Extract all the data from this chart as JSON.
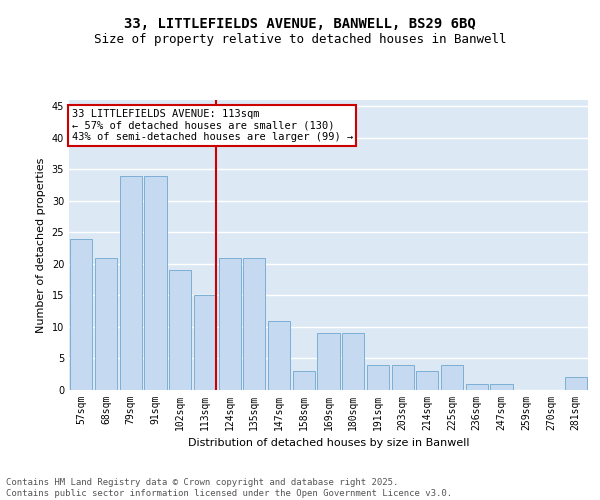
{
  "title_line1": "33, LITTLEFIELDS AVENUE, BANWELL, BS29 6BQ",
  "title_line2": "Size of property relative to detached houses in Banwell",
  "xlabel": "Distribution of detached houses by size in Banwell",
  "ylabel": "Number of detached properties",
  "categories": [
    "57sqm",
    "68sqm",
    "79sqm",
    "91sqm",
    "102sqm",
    "113sqm",
    "124sqm",
    "135sqm",
    "147sqm",
    "158sqm",
    "169sqm",
    "180sqm",
    "191sqm",
    "203sqm",
    "214sqm",
    "225sqm",
    "236sqm",
    "247sqm",
    "259sqm",
    "270sqm",
    "281sqm"
  ],
  "values": [
    24,
    21,
    34,
    34,
    19,
    15,
    21,
    21,
    11,
    3,
    9,
    9,
    4,
    4,
    3,
    4,
    1,
    1,
    0,
    0,
    2
  ],
  "bar_color": "#c5d9f0",
  "bar_edge_color": "#7bafd4",
  "red_line_index": 5,
  "red_line_color": "#cc0000",
  "ylim": [
    0,
    46
  ],
  "yticks": [
    0,
    5,
    10,
    15,
    20,
    25,
    30,
    35,
    40,
    45
  ],
  "grid_color": "#ffffff",
  "bg_color": "#dce9f5",
  "annotation_text": "33 LITTLEFIELDS AVENUE: 113sqm\n← 57% of detached houses are smaller (130)\n43% of semi-detached houses are larger (99) →",
  "annotation_box_edge_color": "#cc0000",
  "footer_text": "Contains HM Land Registry data © Crown copyright and database right 2025.\nContains public sector information licensed under the Open Government Licence v3.0.",
  "title_fontsize": 10,
  "subtitle_fontsize": 9,
  "axis_label_fontsize": 8,
  "tick_fontsize": 7,
  "annotation_fontsize": 7.5,
  "footer_fontsize": 6.5
}
